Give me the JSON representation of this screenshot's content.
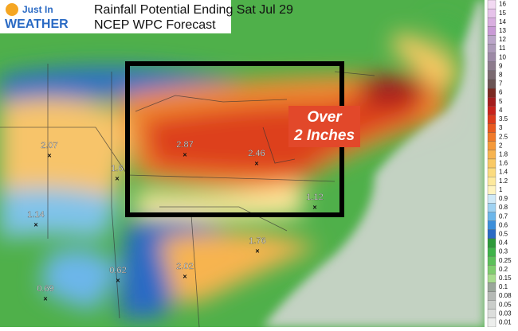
{
  "logo": {
    "line1": "Just In",
    "line2": "WEATHER"
  },
  "header": {
    "title": "Rainfall Potential Ending Sat Jul 29",
    "subtitle": "NCEP WPC Forecast"
  },
  "callout": {
    "line1": "Over",
    "line2": "2 Inches"
  },
  "points": [
    2.07,
    1.6,
    2.87,
    2.46,
    1.12,
    1.14,
    1.76,
    0.62,
    2.02,
    0.69
  ],
  "legend": {
    "ticks": [
      16,
      15,
      14,
      13,
      12,
      11,
      10,
      9,
      8,
      7,
      6,
      5,
      4,
      3.5,
      3,
      2.5,
      2,
      1.8,
      1.6,
      1.4,
      1.2,
      1,
      0.9,
      0.8,
      0.7,
      0.6,
      0.5,
      0.4,
      0.3,
      0.25,
      0.2,
      0.15,
      0.1,
      0.08,
      0.05,
      0.03,
      0.01
    ],
    "colors": [
      "#f2d9f2",
      "#e6c2ea",
      "#d9aee0",
      "#c99ad6",
      "#bba6c9",
      "#ad9bb9",
      "#9d8aa6",
      "#8c7b8c",
      "#7a6a70",
      "#6b5555",
      "#7a2a22",
      "#a41d1d",
      "#c8231c",
      "#dc3b1c",
      "#e85a20",
      "#f07a2a",
      "#f59a3b",
      "#f7b450",
      "#f9c964",
      "#fbdb7e",
      "#fde99c",
      "#fef3bf",
      "#cfe9f7",
      "#9fd2f2",
      "#6cb6ea",
      "#3d8fda",
      "#2a6ac4",
      "#2d9a3a",
      "#3fb34a",
      "#5cc05a",
      "#7fcd6e",
      "#a8dc8e",
      "#9aa69a",
      "#b5b9b5",
      "#cacdca",
      "#dcdedc",
      "#eceeec"
    ]
  }
}
